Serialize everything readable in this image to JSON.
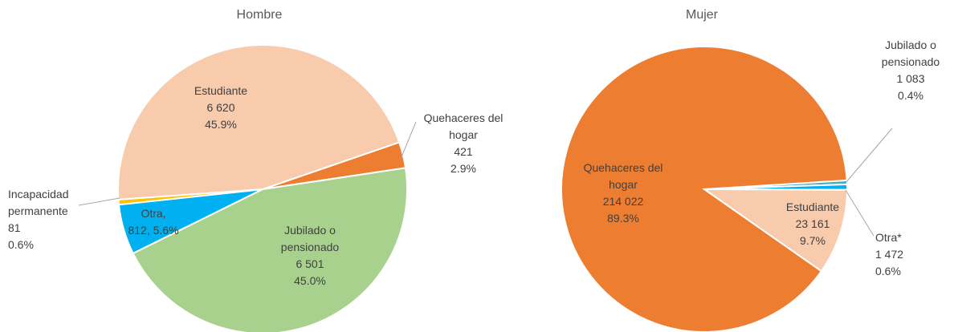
{
  "chart_data": [
    {
      "type": "pie",
      "title": "Hombre",
      "labels": [
        "Quehaceres del hogar",
        "Jubilado o pensionado",
        "Otra,",
        "Incapacidad permanente",
        "Estudiante"
      ],
      "values": [
        421,
        6501,
        812,
        81,
        6620
      ],
      "value_labels": [
        "421",
        "6 501",
        "812,",
        "81",
        "6 620"
      ],
      "percents": [
        2.9,
        45.0,
        5.6,
        0.6,
        45.9
      ],
      "percent_labels": [
        "2.9%",
        "45.0%",
        "5.6%",
        "0.6%",
        "45.9%"
      ],
      "colors": [
        "#ed7d31",
        "#a9d18e",
        "#00b0f0",
        "#ffc000",
        "#f8cbad"
      ]
    },
    {
      "type": "pie",
      "title": "Mujer",
      "labels": [
        "Jubilado o pensionado",
        "Otra*",
        "Estudiante",
        "Quehaceres del hogar"
      ],
      "values": [
        1083,
        1472,
        23161,
        214022
      ],
      "value_labels": [
        "1 083",
        "1 472",
        "23 161",
        "214 022"
      ],
      "percents": [
        0.4,
        0.6,
        9.7,
        89.3
      ],
      "percent_labels": [
        "0.4%",
        "0.6%",
        "9.7%",
        "89.3%"
      ],
      "colors": [
        "#4bacc6",
        "#00b0f0",
        "#f8cbad",
        "#ed7d31"
      ]
    }
  ]
}
